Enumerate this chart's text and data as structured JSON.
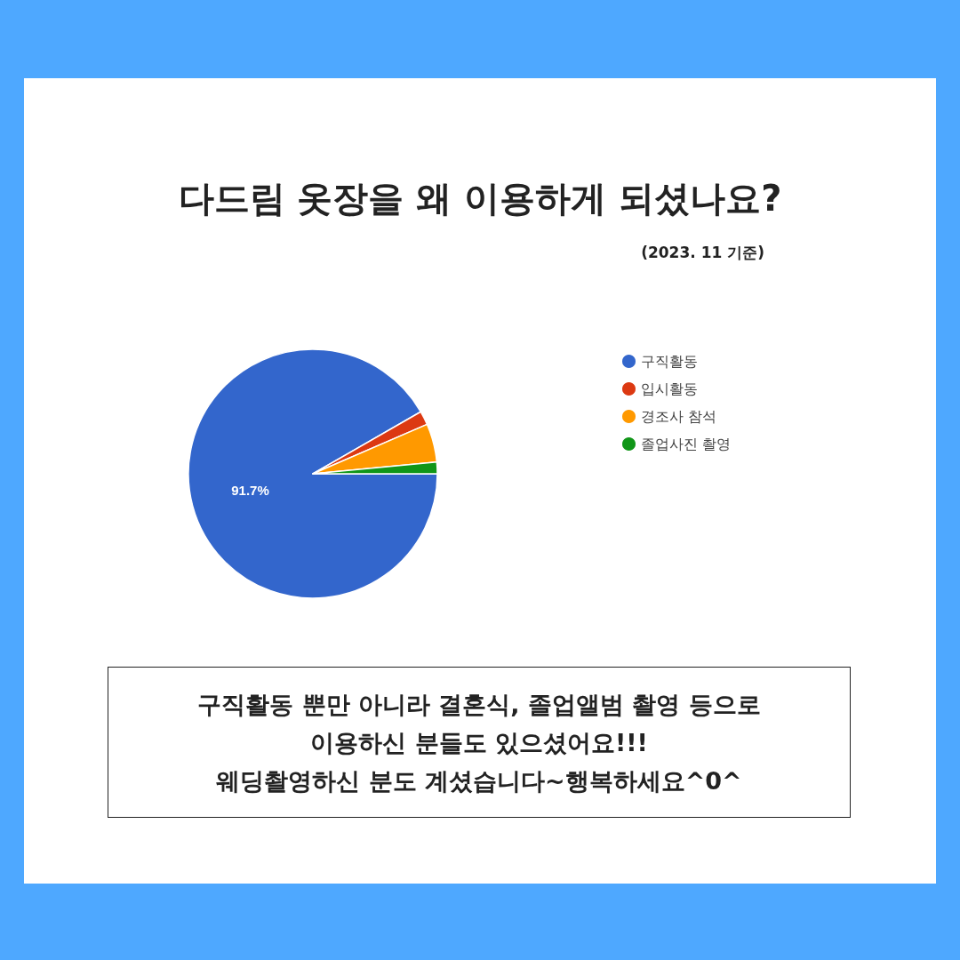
{
  "chart_data": {
    "type": "pie",
    "title": "다드림 옷장을 왜 이용하게 되셨나요?",
    "subtitle": "(2023. 11 기준)",
    "categories": [
      "구직활동",
      "입시활동",
      "경조사 참석",
      "졸업사진 촬영"
    ],
    "values": [
      91.7,
      1.8,
      5.0,
      1.5
    ],
    "colors": [
      "#3366cc",
      "#dc3912",
      "#ff9900",
      "#109618"
    ],
    "value_labels": [
      "91.7%",
      null,
      null,
      null
    ],
    "legend": "right",
    "annotations": [
      "구직활동 뿐만 아니라 결혼식, 졸업앨범 촬영 등으로\n이용하신 분들도 있으셨어요!!!\n웨딩촬영하신 분도 계셨습니다~행복하세요^0^"
    ]
  }
}
